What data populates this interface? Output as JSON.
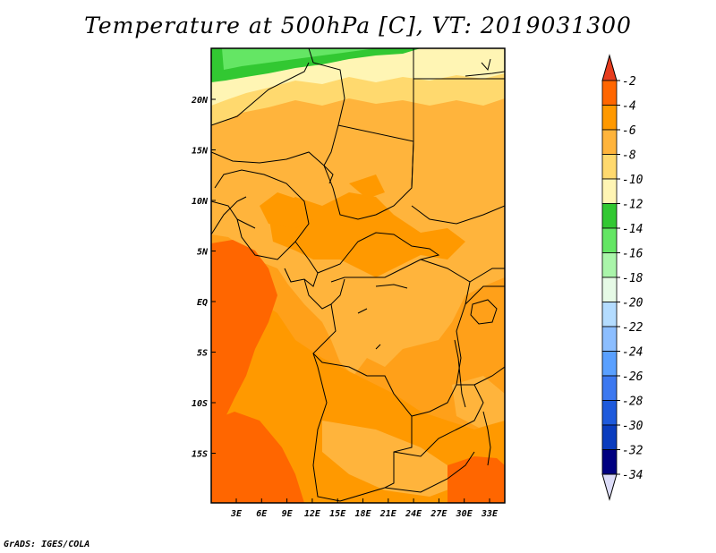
{
  "title": "Temperature at 500hPa [C], VT: 2019031300",
  "credit": "GrADS: IGES/COLA",
  "map": {
    "lon_ticks": [
      "3E",
      "6E",
      "9E",
      "12E",
      "15E",
      "18E",
      "21E",
      "24E",
      "27E",
      "30E",
      "33E"
    ],
    "lat_ticks": [
      "20N",
      "15N",
      "10N",
      "5N",
      "EQ",
      "5S",
      "10S",
      "15S"
    ]
  },
  "colorbar": {
    "labels": [
      "-2",
      "-4",
      "-6",
      "-8",
      "-10",
      "-12",
      "-14",
      "-16",
      "-18",
      "-20",
      "-22",
      "-24",
      "-26",
      "-28",
      "-30",
      "-32",
      "-34"
    ],
    "colors": [
      "#ff3300",
      "#ff6600",
      "#ff9900",
      "#ffb43c",
      "#ffd96e",
      "#fff5b4",
      "#32c832",
      "#64e664",
      "#aaf5aa",
      "#e6fae6",
      "#b4dcff",
      "#8cbeff",
      "#5aa0ff",
      "#3c78f0",
      "#1e5adc",
      "#0a3cbe",
      "#000080"
    ],
    "over_color": "#e63c1e",
    "under_color": "#dcdcf8"
  },
  "fields": {
    "base_color": "#ffa019",
    "bands": [
      {
        "level": "-10 to -12",
        "color": "#fff5b4"
      },
      {
        "level": "-12 to -14",
        "color": "#32c832"
      },
      {
        "level": "-8 to -10",
        "color": "#ffd96e"
      },
      {
        "level": "-6 to -8",
        "color": "#ffb43c"
      },
      {
        "level": "-4 to -6",
        "color": "#ff9900"
      },
      {
        "level": "-2 to -4",
        "color": "#ff6600"
      }
    ]
  }
}
